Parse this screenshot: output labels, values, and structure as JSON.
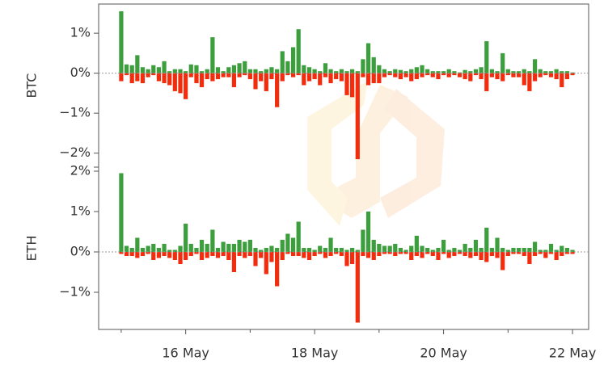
{
  "chart_data": [
    {
      "type": "bar",
      "y_label": "BTC",
      "x": [
        15,
        15.083,
        15.167,
        15.25,
        15.333,
        15.417,
        15.5,
        15.583,
        15.667,
        15.75,
        15.833,
        15.917,
        16,
        16.083,
        16.167,
        16.25,
        16.333,
        16.417,
        16.5,
        16.583,
        16.667,
        16.75,
        16.833,
        16.917,
        17,
        17.083,
        17.167,
        17.25,
        17.333,
        17.417,
        17.5,
        17.583,
        17.667,
        17.75,
        17.833,
        17.917,
        18,
        18.083,
        18.167,
        18.25,
        18.333,
        18.417,
        18.5,
        18.583,
        18.667,
        18.75,
        18.833,
        18.917,
        19,
        19.083,
        19.167,
        19.25,
        19.333,
        19.417,
        19.5,
        19.583,
        19.667,
        19.75,
        19.833,
        19.917,
        20,
        20.083,
        20.167,
        20.25,
        20.333,
        20.417,
        20.5,
        20.583,
        20.667,
        20.75,
        20.833,
        20.917,
        21,
        21.083,
        21.167,
        21.25,
        21.333,
        21.417,
        21.5,
        21.583,
        21.667,
        21.75,
        21.833,
        21.917,
        22
      ],
      "series": [
        {
          "color": "#3c9e3c",
          "values": [
            1.55,
            0.22,
            0.2,
            0.45,
            0.15,
            0.1,
            0.2,
            0.15,
            0.3,
            0.05,
            0.1,
            0.1,
            0.05,
            0.22,
            0.2,
            0.05,
            0.1,
            0.9,
            0.15,
            0.05,
            0.15,
            0.2,
            0.25,
            0.3,
            0.1,
            0.1,
            0.05,
            0.1,
            0.15,
            0.1,
            0.55,
            0.3,
            0.65,
            1.1,
            0.2,
            0.15,
            0.1,
            0.05,
            0.25,
            0.1,
            0.05,
            0.1,
            0.05,
            0.1,
            0.05,
            0.35,
            0.75,
            0.4,
            0.2,
            0.1,
            0.05,
            0.1,
            0.08,
            0.05,
            0.1,
            0.15,
            0.2,
            0.1,
            0.05,
            0.05,
            0.05,
            0.1,
            0.05,
            0.02,
            0.08,
            0.05,
            0.1,
            0.15,
            0.8,
            0.1,
            0.05,
            0.5,
            0.1,
            0.05,
            0.05,
            0.1,
            0.05,
            0.35,
            0.1,
            0.05,
            0.05,
            0.1,
            0.05,
            0.05,
            0.02
          ]
        },
        {
          "color": "#f22c0c",
          "values": [
            -0.2,
            -0.05,
            -0.25,
            -0.2,
            -0.25,
            -0.1,
            -0.05,
            -0.2,
            -0.25,
            -0.3,
            -0.45,
            -0.5,
            -0.65,
            -0.1,
            -0.25,
            -0.35,
            -0.15,
            -0.2,
            -0.15,
            -0.1,
            -0.1,
            -0.35,
            -0.1,
            -0.05,
            -0.15,
            -0.4,
            -0.2,
            -0.45,
            -0.15,
            -0.85,
            -0.2,
            -0.05,
            -0.1,
            -0.05,
            -0.3,
            -0.2,
            -0.15,
            -0.3,
            -0.1,
            -0.25,
            -0.15,
            -0.2,
            -0.55,
            -0.6,
            -2.15,
            -0.1,
            -0.3,
            -0.25,
            -0.25,
            -0.1,
            -0.05,
            -0.1,
            -0.15,
            -0.1,
            -0.2,
            -0.15,
            -0.1,
            -0.05,
            -0.1,
            -0.15,
            -0.05,
            -0.1,
            -0.05,
            -0.1,
            -0.15,
            -0.2,
            -0.05,
            -0.15,
            -0.45,
            -0.1,
            -0.15,
            -0.2,
            -0.05,
            -0.1,
            -0.1,
            -0.3,
            -0.45,
            -0.2,
            -0.1,
            -0.05,
            -0.1,
            -0.15,
            -0.35,
            -0.15,
            -0.05
          ]
        }
      ],
      "xlim": [
        14.65,
        22.25
      ],
      "ylim": [
        -2.35,
        1.73
      ],
      "yticks": [
        {
          "value": 1,
          "label": "1%"
        },
        {
          "value": 0,
          "label": "0%"
        },
        {
          "value": -1,
          "label": "−1%"
        },
        {
          "value": -2,
          "label": "−2%"
        }
      ]
    },
    {
      "type": "bar",
      "y_label": "ETH",
      "x": [
        15,
        15.083,
        15.167,
        15.25,
        15.333,
        15.417,
        15.5,
        15.583,
        15.667,
        15.75,
        15.833,
        15.917,
        16,
        16.083,
        16.167,
        16.25,
        16.333,
        16.417,
        16.5,
        16.583,
        16.667,
        16.75,
        16.833,
        16.917,
        17,
        17.083,
        17.167,
        17.25,
        17.333,
        17.417,
        17.5,
        17.583,
        17.667,
        17.75,
        17.833,
        17.917,
        18,
        18.083,
        18.167,
        18.25,
        18.333,
        18.417,
        18.5,
        18.583,
        18.667,
        18.75,
        18.833,
        18.917,
        19,
        19.083,
        19.167,
        19.25,
        19.333,
        19.417,
        19.5,
        19.583,
        19.667,
        19.75,
        19.833,
        19.917,
        20,
        20.083,
        20.167,
        20.25,
        20.333,
        20.417,
        20.5,
        20.583,
        20.667,
        20.75,
        20.833,
        20.917,
        21,
        21.083,
        21.167,
        21.25,
        21.333,
        21.417,
        21.5,
        21.583,
        21.667,
        21.75,
        21.833,
        21.917,
        22
      ],
      "series": [
        {
          "color": "#3c9e3c",
          "values": [
            1.95,
            0.15,
            0.1,
            0.35,
            0.1,
            0.15,
            0.2,
            0.1,
            0.2,
            0.05,
            0.05,
            0.15,
            0.7,
            0.2,
            0.1,
            0.3,
            0.2,
            0.55,
            0.1,
            0.25,
            0.2,
            0.2,
            0.3,
            0.25,
            0.3,
            0.1,
            0.05,
            0.1,
            0.15,
            0.1,
            0.3,
            0.45,
            0.35,
            0.75,
            0.1,
            0.1,
            0.05,
            0.15,
            0.1,
            0.35,
            0.1,
            0.1,
            0.05,
            0.1,
            0.05,
            0.55,
            1.0,
            0.3,
            0.2,
            0.15,
            0.15,
            0.2,
            0.1,
            0.05,
            0.15,
            0.4,
            0.15,
            0.1,
            0.05,
            0.1,
            0.3,
            0.05,
            0.1,
            0.05,
            0.2,
            0.1,
            0.3,
            0.1,
            0.6,
            0.1,
            0.35,
            0.1,
            0.05,
            0.1,
            0.1,
            0.1,
            0.1,
            0.25,
            0.05,
            0.05,
            0.2,
            0.05,
            0.15,
            0.1,
            0.05
          ]
        },
        {
          "color": "#f22c0c",
          "values": [
            -0.05,
            -0.1,
            -0.1,
            -0.15,
            -0.1,
            -0.05,
            -0.2,
            -0.15,
            -0.1,
            -0.15,
            -0.2,
            -0.3,
            -0.2,
            -0.1,
            -0.05,
            -0.2,
            -0.15,
            -0.1,
            -0.15,
            -0.1,
            -0.2,
            -0.5,
            -0.1,
            -0.15,
            -0.1,
            -0.35,
            -0.15,
            -0.55,
            -0.25,
            -0.85,
            -0.2,
            -0.05,
            -0.1,
            -0.1,
            -0.15,
            -0.2,
            -0.1,
            -0.05,
            -0.15,
            -0.1,
            -0.05,
            -0.1,
            -0.35,
            -0.3,
            -1.75,
            -0.1,
            -0.15,
            -0.2,
            -0.1,
            -0.05,
            -0.05,
            -0.1,
            -0.05,
            -0.05,
            -0.2,
            -0.1,
            -0.15,
            -0.05,
            -0.1,
            -0.2,
            -0.05,
            -0.15,
            -0.1,
            -0.05,
            -0.1,
            -0.15,
            -0.1,
            -0.2,
            -0.25,
            -0.1,
            -0.15,
            -0.45,
            -0.1,
            -0.05,
            -0.05,
            -0.1,
            -0.3,
            -0.1,
            -0.05,
            -0.15,
            -0.05,
            -0.2,
            -0.1,
            -0.05,
            -0.05
          ]
        }
      ],
      "xlim": [
        14.65,
        22.25
      ],
      "xticks": [
        {
          "value": 16,
          "label": "16 May"
        },
        {
          "value": 18,
          "label": "18 May"
        },
        {
          "value": 20,
          "label": "20 May"
        },
        {
          "value": 22,
          "label": "22 May"
        }
      ],
      "xminorticks": [
        15,
        17,
        19,
        21
      ],
      "ylim": [
        -1.92,
        2.1
      ],
      "yticks": [
        {
          "value": 2,
          "label": "2%"
        },
        {
          "value": 1,
          "label": "1%"
        },
        {
          "value": 0,
          "label": "0%"
        },
        {
          "value": -1,
          "label": "−1%"
        }
      ]
    }
  ]
}
